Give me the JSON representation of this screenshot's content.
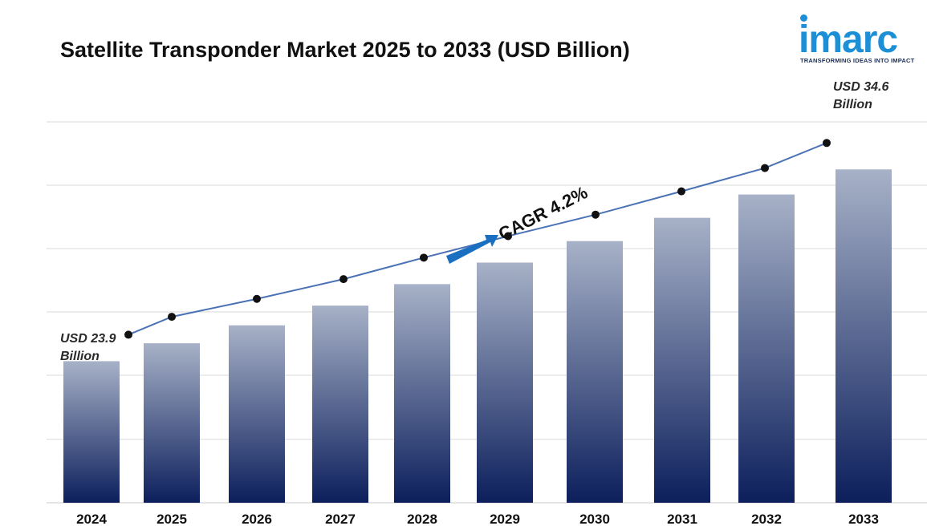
{
  "header": {
    "title": "Satellite Transponder Market 2025 to 2033 (USD Billion)"
  },
  "logo": {
    "wordmark": "imarc",
    "tagline": "TRANSFORMING IDEAS INTO IMPACT",
    "color": "#1d8fd6"
  },
  "annotations": {
    "start_value": "USD 23.9",
    "start_unit": "Billion",
    "end_value": "USD 34.6",
    "end_unit": "Billion",
    "cagr": "CAGR  4.2%"
  },
  "chart_data": {
    "type": "bar",
    "title": "Satellite Transponder Market 2025 to 2033 (USD Billion)",
    "xlabel": "",
    "ylabel": "",
    "categories": [
      "2024",
      "2025",
      "2026",
      "2027",
      "2028",
      "2029",
      "2030",
      "2031",
      "2032",
      "2033"
    ],
    "values": [
      23.9,
      24.9,
      25.9,
      27.0,
      28.2,
      29.4,
      30.6,
      31.9,
      33.2,
      34.6
    ],
    "ylim": [
      0,
      40
    ],
    "grid": true,
    "trend_line": true,
    "colors": {
      "bar_top": "#a7b1c7",
      "bar_bottom": "#0c1f5c",
      "line": "#4a72b5",
      "marker": "#111111",
      "arrow": "#1b6fc0"
    }
  }
}
